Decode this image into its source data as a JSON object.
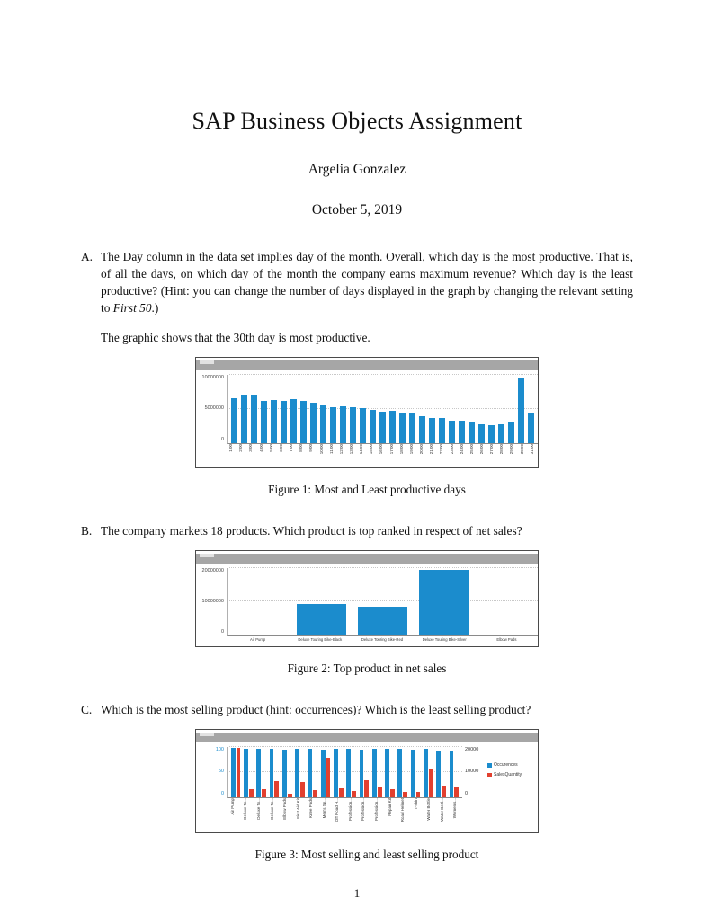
{
  "doc": {
    "title": "SAP Business Objects Assignment",
    "author": "Argelia Gonzalez",
    "date": "October 5, 2019",
    "page_number": "1"
  },
  "items": {
    "a": {
      "label": "A.",
      "text_before": "The Day column in the data set implies day of the month. Overall, which day is the most productive. That is, of all the days, on which day of the month the company earns maximum revenue? Which day is the least productive? (Hint: you can change the number of days displayed in the graph by changing the relevant setting to ",
      "hint_italic": "First 50",
      "text_after": ".)",
      "answer": "The graphic shows that the 30th day is most productive.",
      "figure_caption": "Figure 1: Most and Least productive days"
    },
    "b": {
      "label": "B.",
      "text": "The company markets 18 products. Which product is top ranked in respect of net sales?",
      "figure_caption": "Figure 2: Top product in net sales"
    },
    "c": {
      "label": "C.",
      "text": "Which is the most selling product (hint: occurrences)? Which is the least selling product?",
      "figure_caption": "Figure 3: Most selling and least selling product"
    }
  },
  "colors": {
    "bar_blue": "#1b8ccd",
    "bar_red": "#e2402f",
    "titlebar_gray": "#a6a6a6"
  },
  "chart_data": [
    {
      "type": "bar",
      "title": "",
      "xlabel": "",
      "ylabel": "",
      "categories": [
        "1.00",
        "2.00",
        "3.00",
        "4.00",
        "5.00",
        "6.00",
        "7.00",
        "8.00",
        "9.00",
        "10.00",
        "11.00",
        "12.00",
        "13.00",
        "14.00",
        "15.00",
        "16.00",
        "17.00",
        "18.00",
        "19.00",
        "20.00",
        "21.00",
        "22.00",
        "23.00",
        "24.00",
        "25.00",
        "26.00",
        "27.00",
        "28.00",
        "29.00",
        "30.00",
        "31.00"
      ],
      "values": [
        6500000,
        7000000,
        6900000,
        6200000,
        6300000,
        6200000,
        6400000,
        6200000,
        5900000,
        5500000,
        5300000,
        5400000,
        5200000,
        5100000,
        4900000,
        4600000,
        4700000,
        4400000,
        4300000,
        3900000,
        3600000,
        3600000,
        3300000,
        3200000,
        3000000,
        2800000,
        2600000,
        2700000,
        3000000,
        9600000,
        4500000
      ],
      "yticks": [
        0,
        5000000,
        10000000
      ],
      "ylim": [
        0,
        10000000
      ],
      "bar_color": "#1b8ccd",
      "grid": true,
      "legend": "none"
    },
    {
      "type": "bar",
      "title": "",
      "xlabel": "",
      "ylabel": "",
      "categories": [
        "Air Pump",
        "Deluxe Touring Bike-Black",
        "Deluxe Touring Bike-Red",
        "Deluxe Touring Bike-Silver",
        "Elbow Pads"
      ],
      "values": [
        250000,
        9200000,
        8600000,
        19500000,
        180000
      ],
      "yticks": [
        0,
        10000000,
        20000000
      ],
      "ylim": [
        0,
        20000000
      ],
      "bar_color": "#1b8ccd",
      "grid": true,
      "legend": "none"
    },
    {
      "type": "bar",
      "title": "",
      "xlabel": "",
      "ylabel": "",
      "dual_axis": true,
      "categories": [
        "Air Pump",
        "Deluxe To...",
        "Deluxe To...",
        "Deluxe To...",
        "Elbow Pads",
        "First Aid Kit",
        "Knee Pads",
        "Men's Sp...",
        "Off Road H...",
        "Profession...",
        "Profession...",
        "Profession...",
        "Repair Kit",
        "Road Helmet",
        "T-shirt",
        "Water Bottle",
        "Water Bottl...",
        "Women's..."
      ],
      "series": [
        {
          "name": "Occurences",
          "axis": "left",
          "color": "#1b8ccd",
          "values": [
            98,
            97,
            96,
            96,
            95,
            97,
            96,
            94,
            97,
            96,
            95,
            96,
            97,
            96,
            95,
            96,
            91,
            93
          ]
        },
        {
          "name": "SalesQuantity",
          "axis": "right",
          "color": "#e2402f",
          "values": [
            19500,
            3000,
            3200,
            6500,
            1500,
            6000,
            2800,
            15500,
            3500,
            2500,
            6800,
            3800,
            3200,
            2200,
            2000,
            11000,
            4500,
            4000
          ]
        }
      ],
      "left_ticks": [
        0,
        50,
        100
      ],
      "right_ticks": [
        0,
        10000,
        20000
      ],
      "left_lim": [
        0,
        100
      ],
      "right_lim": [
        0,
        20000
      ],
      "grid": true,
      "legend_position": "right"
    }
  ]
}
